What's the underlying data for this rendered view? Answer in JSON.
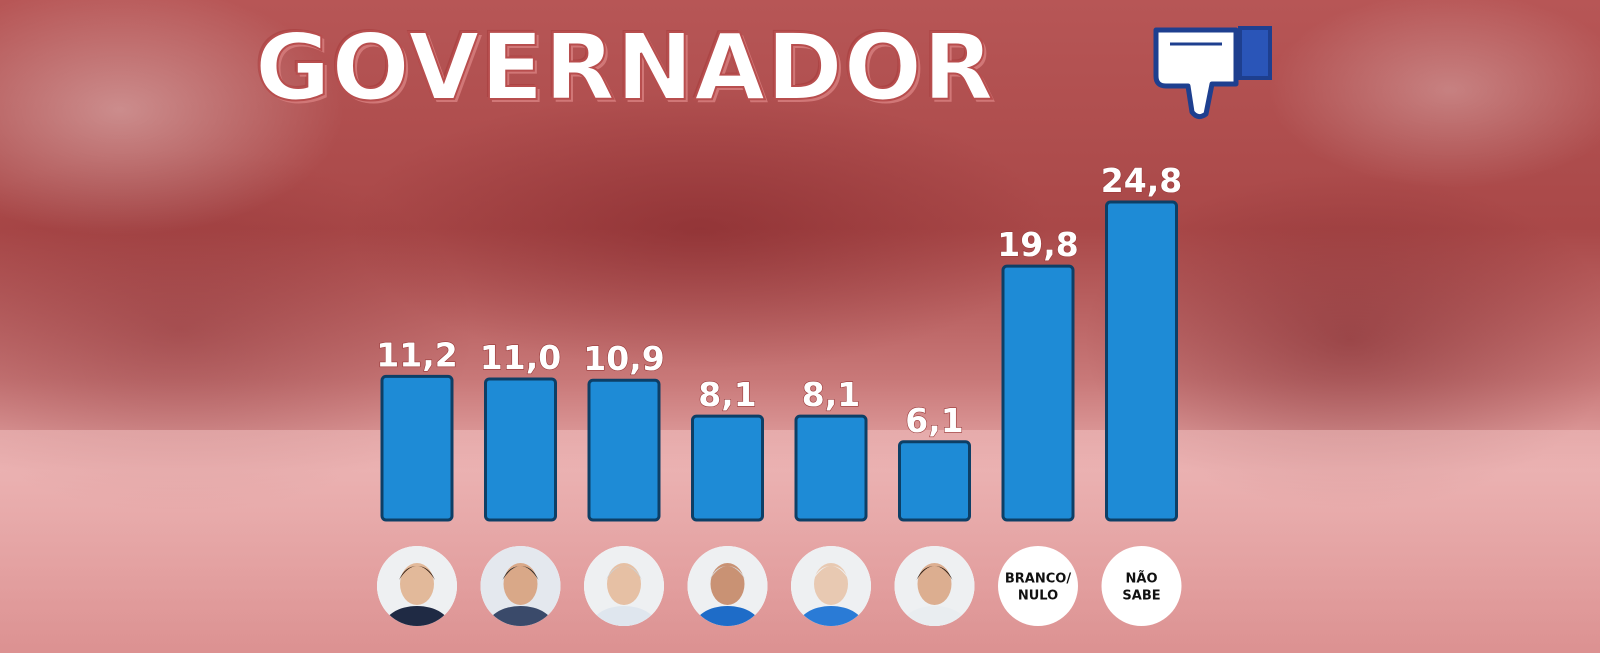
{
  "title": "GOVERNADOR",
  "title_icon": "thumbs-down-icon",
  "colors": {
    "bar": "#1e8bd6",
    "bar_border": "#0d3f66",
    "background": "#c86a6a",
    "title": "#ffffff"
  },
  "chart_data": {
    "type": "bar",
    "title": "GOVERNADOR",
    "categories": [
      "",
      "",
      "",
      "",
      "",
      "",
      "BRANCO/ NULO",
      "NÃO SABE"
    ],
    "category_visuals": [
      "candidate-photo",
      "candidate-photo",
      "candidate-photo",
      "candidate-photo",
      "candidate-photo",
      "candidate-photo",
      "text",
      "text"
    ],
    "values": [
      11.2,
      11.0,
      10.9,
      8.1,
      8.1,
      6.1,
      19.8,
      24.8
    ],
    "value_labels": [
      "11,2",
      "11,0",
      "10,9",
      "8,1",
      "8,1",
      "6,1",
      "19,8",
      "24,8"
    ],
    "ylim": [
      0,
      24.8
    ],
    "grid": false,
    "legend": "none",
    "xlabel": "",
    "ylabel": ""
  }
}
